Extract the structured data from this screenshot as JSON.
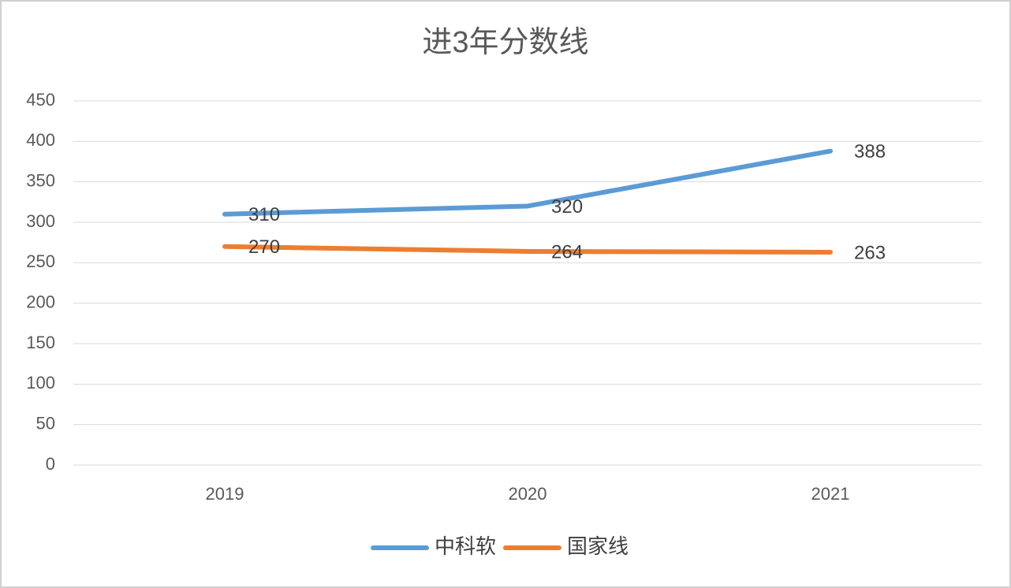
{
  "chart_data": {
    "type": "line",
    "title": "进3年分数线",
    "categories": [
      "2019",
      "2020",
      "2021"
    ],
    "series": [
      {
        "name": "中科软",
        "color": "#5b9bd5",
        "values": [
          310,
          320,
          388
        ]
      },
      {
        "name": "国家线",
        "color": "#ed7d31",
        "values": [
          270,
          264,
          263
        ]
      }
    ],
    "ylim": [
      0,
      450
    ],
    "yticks": [
      0,
      50,
      100,
      150,
      200,
      250,
      300,
      350,
      400,
      450
    ],
    "grid": true,
    "legend": "bottom",
    "data_labels": true
  }
}
